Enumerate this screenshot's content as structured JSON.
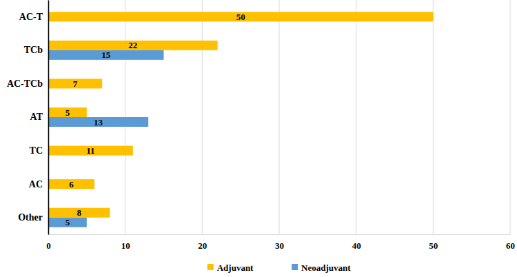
{
  "chart_data": {
    "type": "bar",
    "orientation": "horizontal",
    "categories": [
      "AC-T",
      "TCb",
      "AC-TCb",
      "AT",
      "TC",
      "AC",
      "Other"
    ],
    "series": [
      {
        "name": "Adjuvant",
        "color": "#ffc000",
        "values": [
          50,
          22,
          7,
          5,
          11,
          6,
          8
        ]
      },
      {
        "name": "Neoadjuvant",
        "color": "#5b9bd5",
        "values": [
          null,
          15,
          null,
          13,
          null,
          null,
          5
        ]
      }
    ],
    "xlim": [
      0,
      60
    ],
    "xticks": [
      0,
      10,
      20,
      30,
      40,
      50,
      60
    ],
    "grid": true,
    "legend": "bottom",
    "data_labels": true
  }
}
